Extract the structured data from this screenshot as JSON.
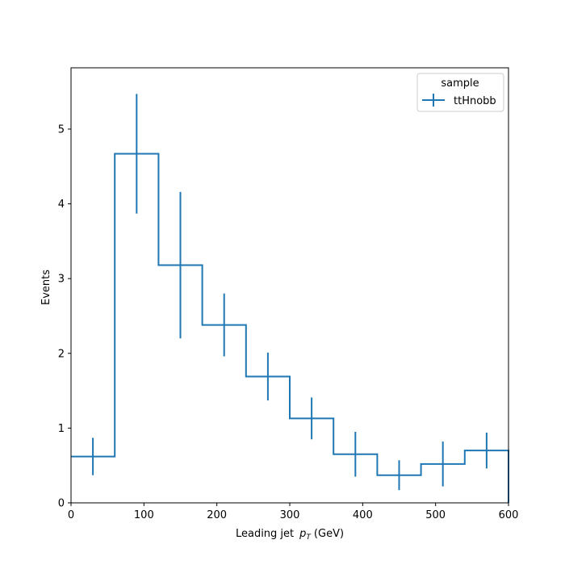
{
  "chart_data": {
    "type": "histogram",
    "title": "",
    "xlabel": "Leading jet",
    "xlabel_symbol": "p",
    "xlabel_subscript": "T",
    "xlabel_unit": "(GeV)",
    "ylabel": "Events",
    "xlim": [
      0,
      600
    ],
    "ylim": [
      0,
      5.82
    ],
    "xticks": [
      0,
      100,
      200,
      300,
      400,
      500,
      600
    ],
    "yticks": [
      0,
      1,
      2,
      3,
      4,
      5
    ],
    "grid": false,
    "bin_edges": [
      0,
      60,
      120,
      180,
      240,
      300,
      360,
      420,
      480,
      540,
      600
    ],
    "series": [
      {
        "name": "ttHnobb",
        "color": "#1f77b4",
        "values": [
          0.62,
          4.67,
          3.18,
          2.38,
          1.69,
          1.13,
          0.65,
          0.37,
          0.52,
          0.7
        ],
        "errors": [
          0.25,
          0.8,
          0.98,
          0.42,
          0.32,
          0.28,
          0.3,
          0.2,
          0.3,
          0.24
        ]
      }
    ],
    "legend": {
      "title": "sample",
      "position": "top-right"
    }
  }
}
